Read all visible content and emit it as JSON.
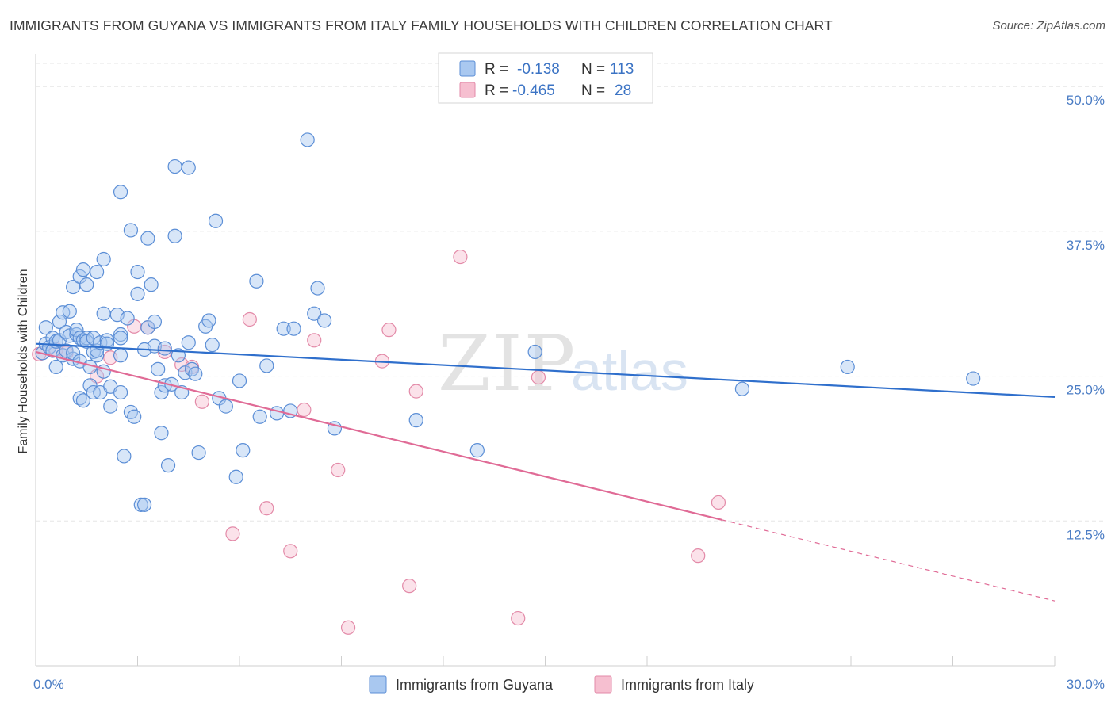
{
  "title": "IMMIGRANTS FROM GUYANA VS IMMIGRANTS FROM ITALY FAMILY HOUSEHOLDS WITH CHILDREN CORRELATION CHART",
  "source": "Source: ZipAtlas.com",
  "watermark": {
    "zip": "ZIP",
    "atlas": "atlas"
  },
  "colors": {
    "guyana_fill": "#a9c8f0",
    "guyana_stroke": "#5b8ed6",
    "guyana_line": "#2f6fcc",
    "italy_fill": "#f6bfd0",
    "italy_stroke": "#e38aa8",
    "italy_line": "#e06b96",
    "axis_text": "#4a7cc4",
    "grid": "#e6e6e6"
  },
  "chart_data": {
    "type": "scatter",
    "title": "IMMIGRANTS FROM GUYANA VS IMMIGRANTS FROM ITALY FAMILY HOUSEHOLDS WITH CHILDREN CORRELATION CHART",
    "xlabel": "",
    "ylabel": "Family Households with Children",
    "xlim": [
      0,
      30
    ],
    "ylim": [
      0,
      52
    ],
    "x_tick_labels": [
      "0.0%",
      "30.0%"
    ],
    "y_ticks": [
      12.5,
      25.0,
      37.5,
      50.0
    ],
    "y_tick_labels": [
      "12.5%",
      "25.0%",
      "37.5%",
      "50.0%"
    ],
    "legend": [
      {
        "r_label": "R =",
        "r_value": "-0.138",
        "n_label": "N =",
        "n_value": "113"
      },
      {
        "r_label": "R =",
        "r_value": "-0.465",
        "n_label": "N =",
        "n_value": "28"
      }
    ],
    "series": [
      {
        "name": "Immigrants from Guyana",
        "trend": {
          "x0": 0,
          "y0": 27.8,
          "x1": 30,
          "y1": 23.2
        },
        "points": [
          [
            0.2,
            27.0
          ],
          [
            0.3,
            27.8
          ],
          [
            0.3,
            29.2
          ],
          [
            0.4,
            27.5
          ],
          [
            0.5,
            28.3
          ],
          [
            0.5,
            27.2
          ],
          [
            0.6,
            25.8
          ],
          [
            0.6,
            28.0
          ],
          [
            0.7,
            29.7
          ],
          [
            0.7,
            28.1
          ],
          [
            0.8,
            26.8
          ],
          [
            0.8,
            30.5
          ],
          [
            0.9,
            28.8
          ],
          [
            0.9,
            27.2
          ],
          [
            1.0,
            30.6
          ],
          [
            1.0,
            28.5
          ],
          [
            1.1,
            26.5
          ],
          [
            1.1,
            27.0
          ],
          [
            1.1,
            32.7
          ],
          [
            1.2,
            28.6
          ],
          [
            1.2,
            29.0
          ],
          [
            1.3,
            33.6
          ],
          [
            1.3,
            26.3
          ],
          [
            1.3,
            28.3
          ],
          [
            1.4,
            28.1
          ],
          [
            1.4,
            34.2
          ],
          [
            1.5,
            28.3
          ],
          [
            1.5,
            28.0
          ],
          [
            1.5,
            32.9
          ],
          [
            1.3,
            23.1
          ],
          [
            1.4,
            22.9
          ],
          [
            1.6,
            25.8
          ],
          [
            1.6,
            24.2
          ],
          [
            1.7,
            28.3
          ],
          [
            1.7,
            27.1
          ],
          [
            1.8,
            26.8
          ],
          [
            1.7,
            23.6
          ],
          [
            1.8,
            34.0
          ],
          [
            1.8,
            27.2
          ],
          [
            1.9,
            27.9
          ],
          [
            1.9,
            23.6
          ],
          [
            2.0,
            25.4
          ],
          [
            2.0,
            35.1
          ],
          [
            2.0,
            30.4
          ],
          [
            2.1,
            28.1
          ],
          [
            2.1,
            27.8
          ],
          [
            2.2,
            22.4
          ],
          [
            2.2,
            24.1
          ],
          [
            2.4,
            30.3
          ],
          [
            2.5,
            28.6
          ],
          [
            2.5,
            28.3
          ],
          [
            2.5,
            26.8
          ],
          [
            2.5,
            23.6
          ],
          [
            2.5,
            40.9
          ],
          [
            2.6,
            18.1
          ],
          [
            2.7,
            30.0
          ],
          [
            2.8,
            37.6
          ],
          [
            2.8,
            21.9
          ],
          [
            2.9,
            21.5
          ],
          [
            3.0,
            32.1
          ],
          [
            3.0,
            34.0
          ],
          [
            3.1,
            13.9
          ],
          [
            3.2,
            13.9
          ],
          [
            3.2,
            27.3
          ],
          [
            3.3,
            36.9
          ],
          [
            3.3,
            29.2
          ],
          [
            3.4,
            32.9
          ],
          [
            3.5,
            27.6
          ],
          [
            3.5,
            29.7
          ],
          [
            3.6,
            25.6
          ],
          [
            3.7,
            20.1
          ],
          [
            3.7,
            23.6
          ],
          [
            3.8,
            24.2
          ],
          [
            3.8,
            27.4
          ],
          [
            3.9,
            17.3
          ],
          [
            4.0,
            24.3
          ],
          [
            4.1,
            43.1
          ],
          [
            4.1,
            37.1
          ],
          [
            4.2,
            26.8
          ],
          [
            4.3,
            23.6
          ],
          [
            4.4,
            25.3
          ],
          [
            4.5,
            43.0
          ],
          [
            4.5,
            27.9
          ],
          [
            4.6,
            25.6
          ],
          [
            4.7,
            25.2
          ],
          [
            4.8,
            18.4
          ],
          [
            5.0,
            29.3
          ],
          [
            5.1,
            29.8
          ],
          [
            5.2,
            27.7
          ],
          [
            5.3,
            38.4
          ],
          [
            5.4,
            23.1
          ],
          [
            5.6,
            22.4
          ],
          [
            5.9,
            16.3
          ],
          [
            6.0,
            24.6
          ],
          [
            6.1,
            18.6
          ],
          [
            6.5,
            33.2
          ],
          [
            6.6,
            21.5
          ],
          [
            6.8,
            25.9
          ],
          [
            7.1,
            21.8
          ],
          [
            7.3,
            29.1
          ],
          [
            7.5,
            22.0
          ],
          [
            7.6,
            29.1
          ],
          [
            8.0,
            45.4
          ],
          [
            8.2,
            30.4
          ],
          [
            8.3,
            32.6
          ],
          [
            8.5,
            29.8
          ],
          [
            8.8,
            20.5
          ],
          [
            11.2,
            21.2
          ],
          [
            13.0,
            18.6
          ],
          [
            14.7,
            27.1
          ],
          [
            20.8,
            23.9
          ],
          [
            23.9,
            25.8
          ],
          [
            27.6,
            24.8
          ]
        ]
      },
      {
        "name": "Immigrants from Italy",
        "trend": {
          "x0": 0,
          "y0": 27.1,
          "x1": 20.2,
          "y1": 12.6
        },
        "trend_extension": {
          "x0": 20.2,
          "y0": 12.6,
          "x1": 30,
          "y1": 5.6
        },
        "points": [
          [
            0.1,
            26.9
          ],
          [
            0.6,
            27.3
          ],
          [
            0.9,
            27.0
          ],
          [
            1.8,
            25.0
          ],
          [
            2.2,
            26.6
          ],
          [
            2.9,
            29.3
          ],
          [
            3.3,
            29.2
          ],
          [
            3.8,
            27.1
          ],
          [
            4.3,
            26.0
          ],
          [
            4.6,
            25.8
          ],
          [
            4.9,
            22.8
          ],
          [
            5.8,
            11.4
          ],
          [
            6.3,
            29.9
          ],
          [
            6.8,
            13.6
          ],
          [
            7.5,
            9.9
          ],
          [
            7.9,
            22.1
          ],
          [
            8.2,
            28.1
          ],
          [
            8.9,
            16.9
          ],
          [
            9.2,
            3.3
          ],
          [
            10.2,
            26.3
          ],
          [
            10.4,
            29.0
          ],
          [
            11.0,
            6.9
          ],
          [
            11.2,
            23.7
          ],
          [
            12.5,
            35.3
          ],
          [
            14.2,
            4.1
          ],
          [
            14.8,
            24.9
          ],
          [
            19.5,
            9.5
          ],
          [
            20.1,
            14.1
          ]
        ]
      }
    ]
  }
}
